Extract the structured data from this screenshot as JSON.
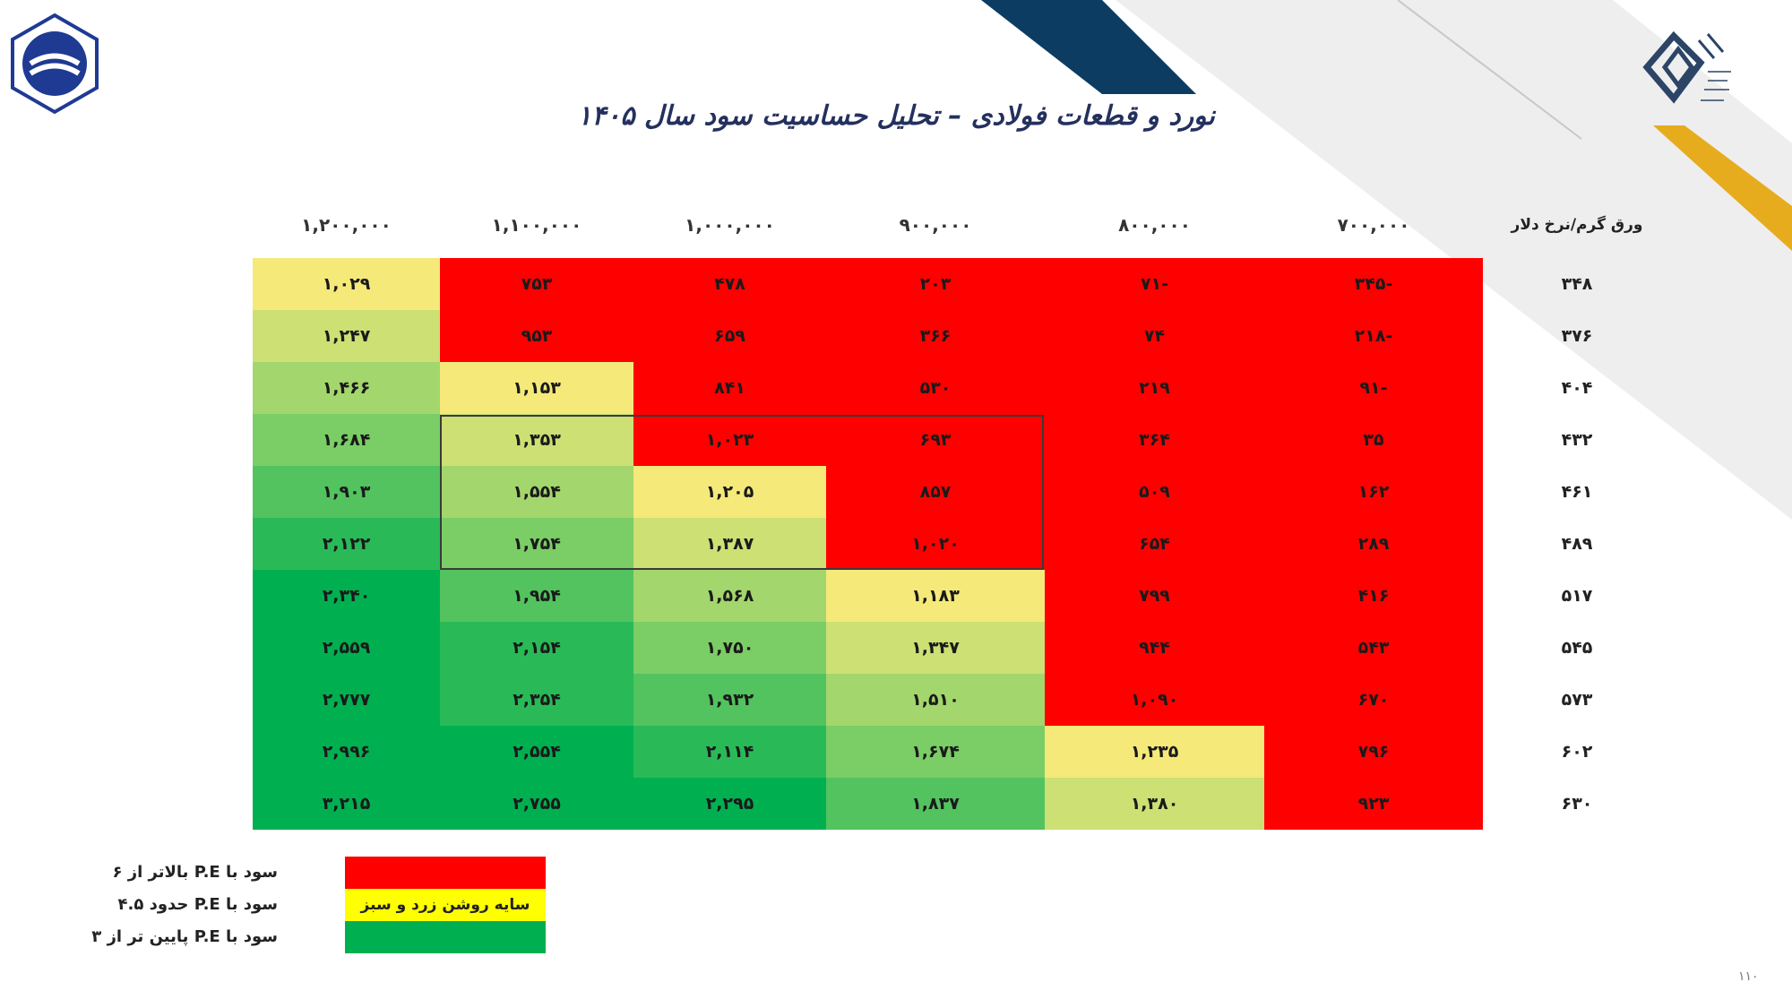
{
  "header": {
    "title": "نورد و قطعات فولادی – تحلیل حساسیت سود سال ۱۴۰۵",
    "logo_left": "company-hexagon-logo",
    "logo_right": "calligraphic-seal-logo"
  },
  "table": {
    "corner_header": "ورق گرم/نرخ دلار",
    "columns": [
      "۷۰۰,۰۰۰",
      "۸۰۰,۰۰۰",
      "۹۰۰,۰۰۰",
      "۱,۰۰۰,۰۰۰",
      "۱,۱۰۰,۰۰۰",
      "۱,۲۰۰,۰۰۰"
    ],
    "rows": [
      {
        "label": "۳۴۸",
        "values": [
          "۳۴۵-",
          "۷۱-",
          "۲۰۳",
          "۴۷۸",
          "۷۵۳",
          "۱,۰۲۹"
        ]
      },
      {
        "label": "۳۷۶",
        "values": [
          "۲۱۸-",
          "۷۴",
          "۳۶۶",
          "۶۵۹",
          "۹۵۳",
          "۱,۲۴۷"
        ]
      },
      {
        "label": "۴۰۴",
        "values": [
          "۹۱-",
          "۲۱۹",
          "۵۳۰",
          "۸۴۱",
          "۱,۱۵۳",
          "۱,۴۶۶"
        ]
      },
      {
        "label": "۴۳۲",
        "values": [
          "۳۵",
          "۳۶۴",
          "۶۹۳",
          "۱,۰۲۳",
          "۱,۳۵۳",
          "۱,۶۸۴"
        ]
      },
      {
        "label": "۴۶۱",
        "values": [
          "۱۶۲",
          "۵۰۹",
          "۸۵۷",
          "۱,۲۰۵",
          "۱,۵۵۴",
          "۱,۹۰۳"
        ]
      },
      {
        "label": "۴۸۹",
        "values": [
          "۲۸۹",
          "۶۵۴",
          "۱,۰۲۰",
          "۱,۳۸۷",
          "۱,۷۵۴",
          "۲,۱۲۲"
        ]
      },
      {
        "label": "۵۱۷",
        "values": [
          "۴۱۶",
          "۷۹۹",
          "۱,۱۸۳",
          "۱,۵۶۸",
          "۱,۹۵۴",
          "۲,۳۴۰"
        ]
      },
      {
        "label": "۵۴۵",
        "values": [
          "۵۴۳",
          "۹۴۴",
          "۱,۳۴۷",
          "۱,۷۵۰",
          "۲,۱۵۴",
          "۲,۵۵۹"
        ]
      },
      {
        "label": "۵۷۳",
        "values": [
          "۶۷۰",
          "۱,۰۹۰",
          "۱,۵۱۰",
          "۱,۹۳۲",
          "۲,۳۵۴",
          "۲,۷۷۷"
        ]
      },
      {
        "label": "۶۰۲",
        "values": [
          "۷۹۶",
          "۱,۲۳۵",
          "۱,۶۷۴",
          "۲,۱۱۴",
          "۲,۵۵۴",
          "۲,۹۹۶"
        ]
      },
      {
        "label": "۶۳۰",
        "values": [
          "۹۲۳",
          "۱,۳۸۰",
          "۱,۸۳۷",
          "۲,۲۹۵",
          "۲,۷۵۵",
          "۳,۲۱۵"
        ]
      }
    ],
    "shades": [
      [
        0,
        0,
        0,
        0,
        0,
        1
      ],
      [
        0,
        0,
        0,
        0,
        0,
        2
      ],
      [
        0,
        0,
        0,
        0,
        1,
        3
      ],
      [
        0,
        0,
        0,
        0,
        2,
        4
      ],
      [
        0,
        0,
        0,
        1,
        3,
        5
      ],
      [
        0,
        0,
        0,
        2,
        4,
        6
      ],
      [
        0,
        0,
        1,
        3,
        5,
        7
      ],
      [
        0,
        0,
        2,
        4,
        6,
        7
      ],
      [
        0,
        0,
        3,
        5,
        6,
        7
      ],
      [
        0,
        1,
        4,
        6,
        7,
        7
      ],
      [
        0,
        2,
        5,
        7,
        7,
        7
      ]
    ],
    "colors": {
      "red": "#ff0000",
      "yellow": "#f5e97a",
      "green": "#00b050"
    }
  },
  "legend": {
    "items": [
      {
        "label": "سود با P.E بالاتر از ۶",
        "color": "#ff0000",
        "swatch_text": ""
      },
      {
        "label": "سود با P.E حدود ۴.۵",
        "color": "#ffff00",
        "swatch_text": "سایه روشن زرد و سبز"
      },
      {
        "label": "سود با P.E پایین تر از ۳",
        "color": "#00b050",
        "swatch_text": ""
      }
    ]
  },
  "footer": {
    "page_number": "۱۱۰"
  }
}
